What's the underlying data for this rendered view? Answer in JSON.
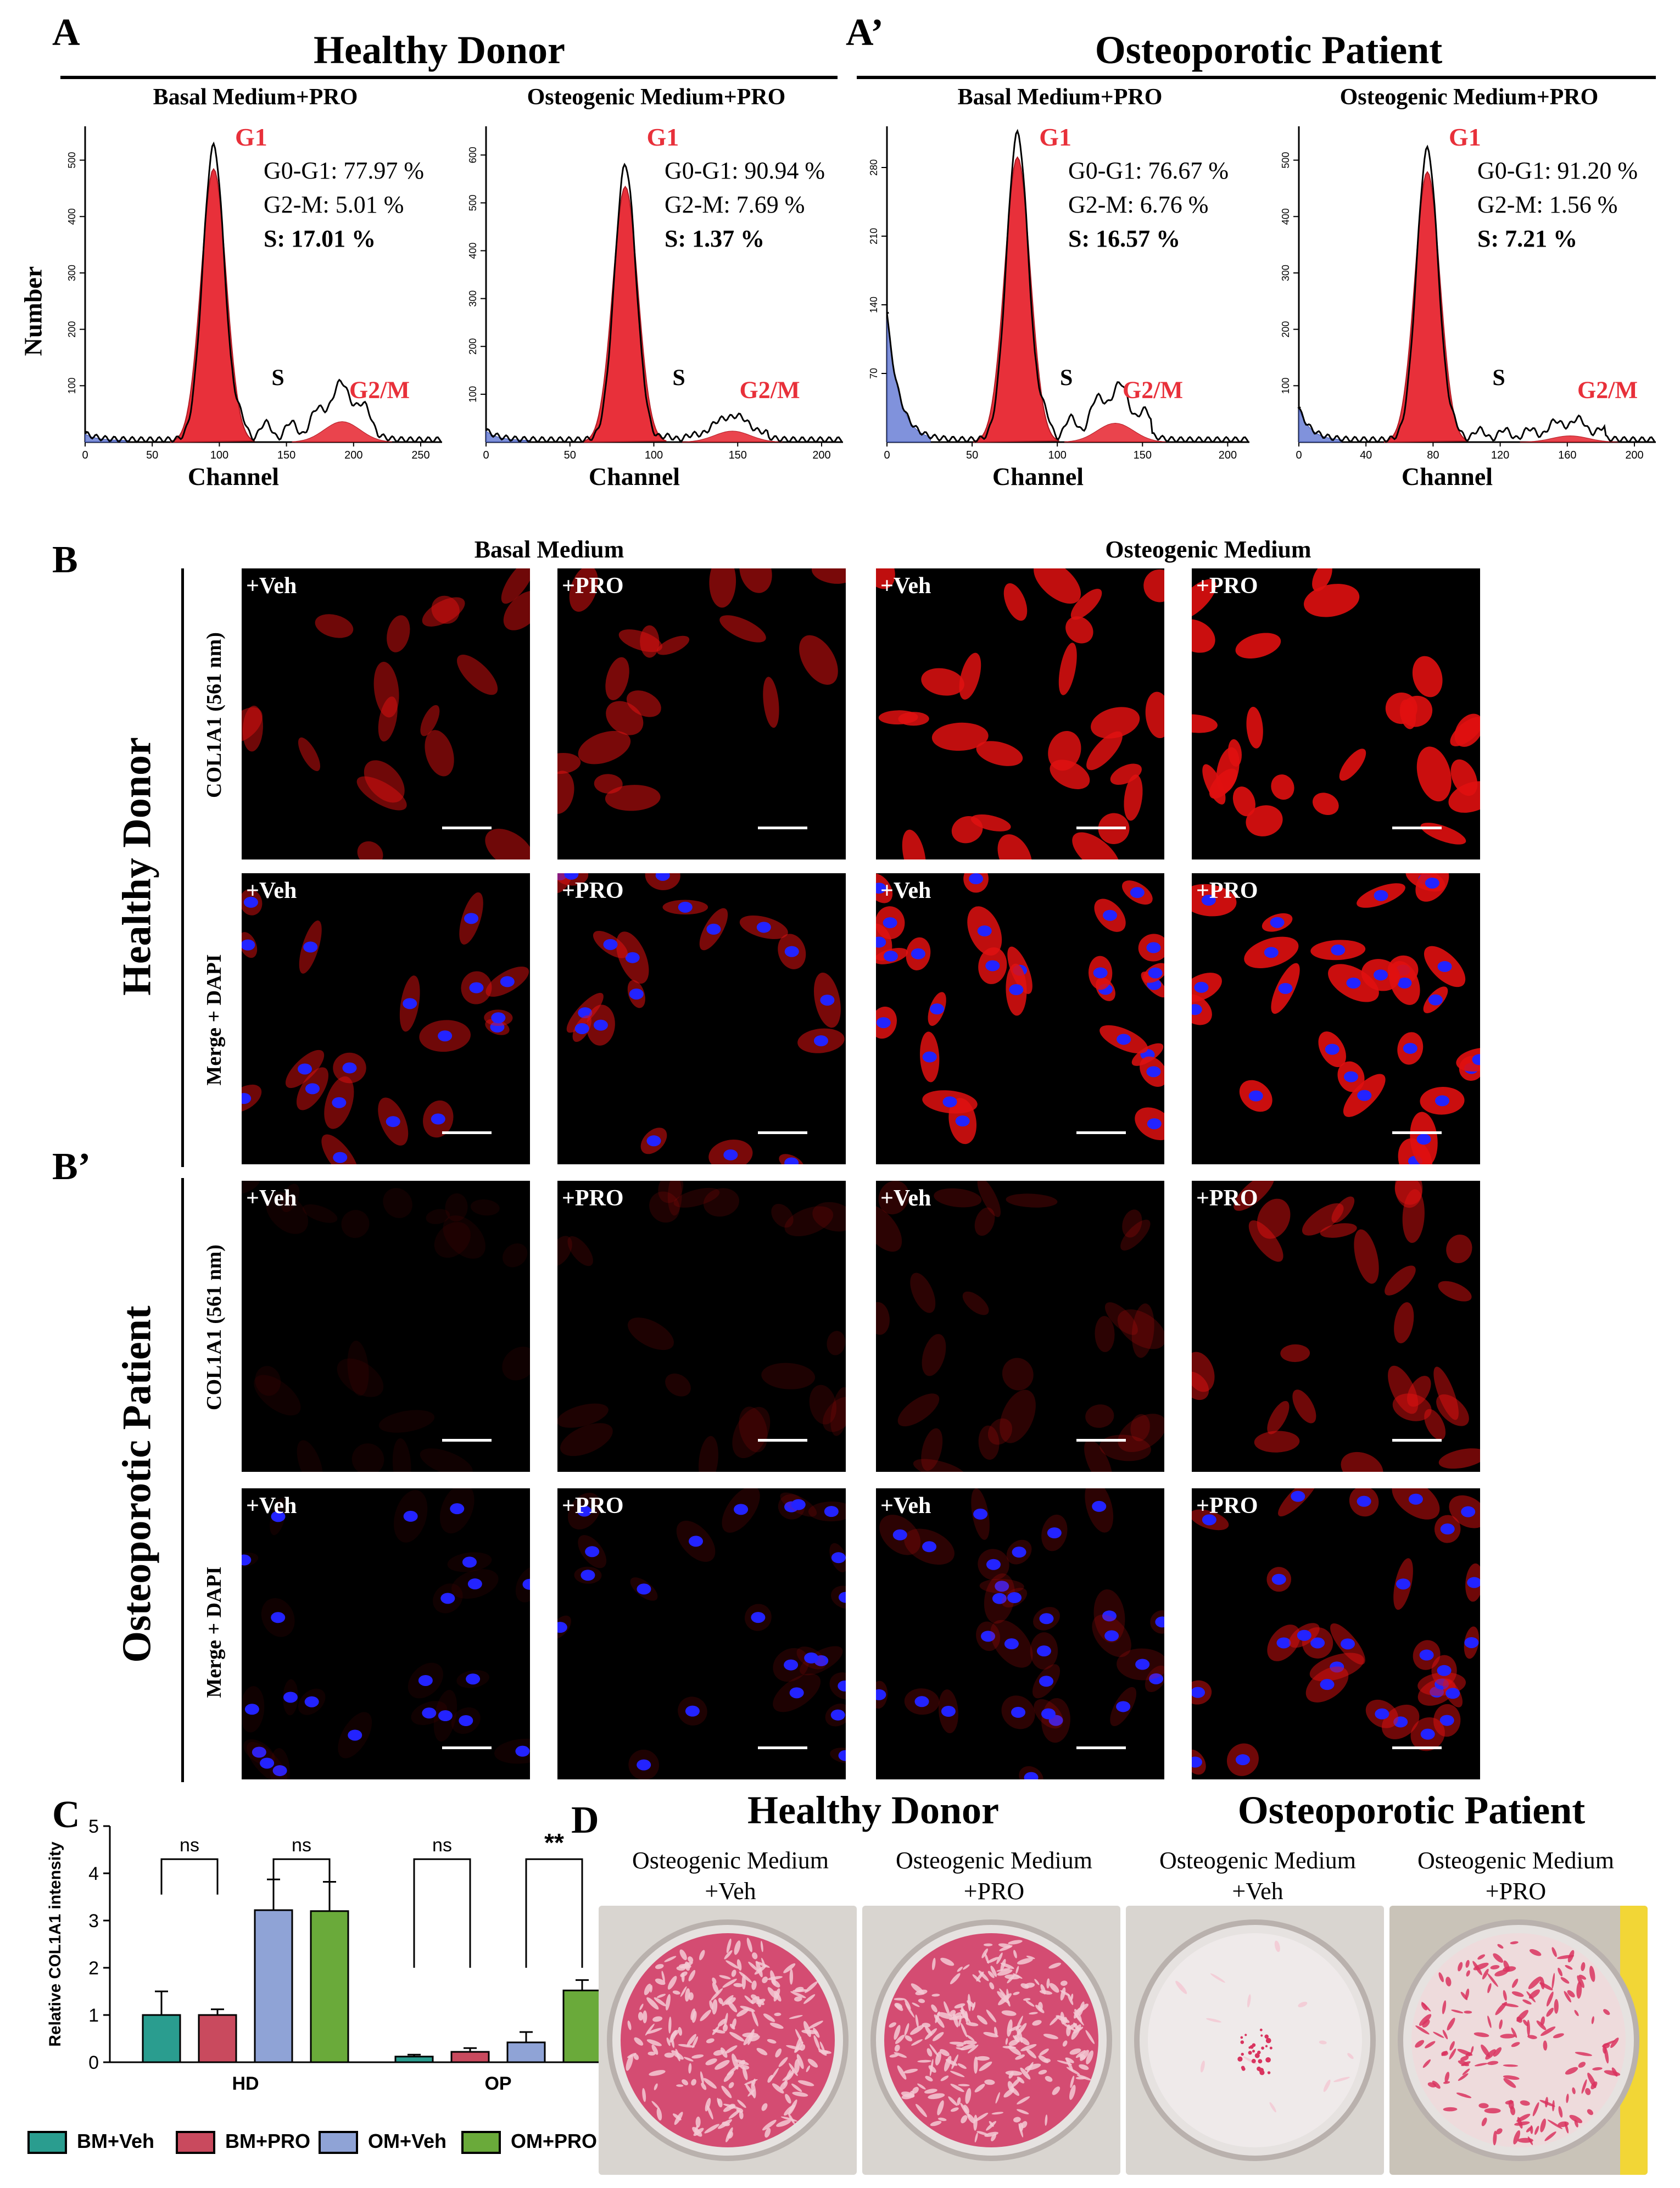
{
  "panels": {
    "A": "A",
    "A_prime": "A’",
    "B": "B",
    "B_prime": "B’",
    "C": "C",
    "D": "D"
  },
  "section_a": {
    "healthy_title": "Healthy Donor",
    "patient_title": "Osteoporotic Patient",
    "y_label": "Number",
    "x_label": "Channel",
    "plots": [
      {
        "subtitle": "Basal Medium+PRO",
        "g1": "G1",
        "s": "S",
        "g2m": "G2/M",
        "stats": [
          "G0-G1: 77.97 %",
          "G2-M: 5.01 %",
          "S: 17.01 %"
        ],
        "xticks": [
          "0",
          "50",
          "100",
          "150",
          "200",
          "250"
        ],
        "yticks": [
          "100",
          "200",
          "300",
          "400",
          "500"
        ]
      },
      {
        "subtitle": "Osteogenic Medium+PRO",
        "g1": "G1",
        "s": "S",
        "g2m": "G2/M",
        "stats": [
          "G0-G1: 90.94 %",
          "G2-M: 7.69 %",
          "S: 1.37 %"
        ],
        "xticks": [
          "0",
          "50",
          "100",
          "150",
          "200"
        ],
        "yticks": [
          "100",
          "200",
          "300",
          "400",
          "500",
          "600"
        ]
      },
      {
        "subtitle": "Basal Medium+PRO",
        "g1": "G1",
        "s": "S",
        "g2m": "G2/M",
        "stats": [
          "G0-G1: 76.67 %",
          "G2-M: 6.76 %",
          "S: 16.57 %"
        ],
        "xticks": [
          "0",
          "50",
          "100",
          "150",
          "200"
        ],
        "yticks": [
          "70",
          "140",
          "210",
          "280"
        ]
      },
      {
        "subtitle": "Osteogenic Medium+PRO",
        "g1": "G1",
        "s": "S",
        "g2m": "G2/M",
        "stats": [
          "G0-G1: 91.20 %",
          "G2-M: 1.56 %",
          "S: 7.21 %"
        ],
        "xticks": [
          "0",
          "40",
          "80",
          "120",
          "160",
          "200"
        ],
        "yticks": [
          "100",
          "200",
          "300",
          "400",
          "500"
        ]
      }
    ]
  },
  "section_b": {
    "col_basal": "Basal Medium",
    "col_osteo": "Osteogenic Medium",
    "row_healthy": "Healthy Donor",
    "row_patient": "Osteoporotic Patient",
    "label_col": "COL1A1 (561 nm)",
    "label_merge": "Merge + DAPI",
    "tag_veh": "+Veh",
    "tag_pro": "+PRO"
  },
  "chart_data": {
    "type": "bar",
    "ylabel": "Relative COL1A1 intensity",
    "ylim": [
      0,
      5
    ],
    "yticks": [
      "0",
      "1",
      "2",
      "3",
      "4",
      "5"
    ],
    "categories": [
      "HD",
      "OP"
    ],
    "series": [
      {
        "name": "BM+Veh",
        "color": "#2a9d8f",
        "values": [
          1.0,
          0.12
        ],
        "errors": [
          0.5,
          0.04
        ]
      },
      {
        "name": "BM+PRO",
        "color": "#c94a5e",
        "values": [
          1.0,
          0.22
        ],
        "errors": [
          0.12,
          0.08
        ]
      },
      {
        "name": "OM+Veh",
        "color": "#8fa3d6",
        "values": [
          3.22,
          0.42
        ],
        "errors": [
          0.65,
          0.22
        ]
      },
      {
        "name": "OM+PRO",
        "color": "#6aaa3a",
        "values": [
          3.2,
          1.52
        ],
        "errors": [
          0.62,
          0.22
        ]
      }
    ],
    "annotations": [
      "ns",
      "ns",
      "ns",
      "**"
    ]
  },
  "section_d": {
    "healthy_title": "Healthy Donor",
    "patient_title": "Osteoporotic Patient",
    "wells": [
      {
        "l1": "Osteogenic Medium",
        "l2": "+Veh"
      },
      {
        "l1": "Osteogenic Medium",
        "l2": "+PRO"
      },
      {
        "l1": "Osteogenic Medium",
        "l2": "+Veh"
      },
      {
        "l1": "Osteogenic Medium",
        "l2": "+PRO"
      }
    ]
  },
  "colors": {
    "peak": "#e8303a",
    "debris": "#6a7fd6",
    "stain": "#d9345f"
  }
}
